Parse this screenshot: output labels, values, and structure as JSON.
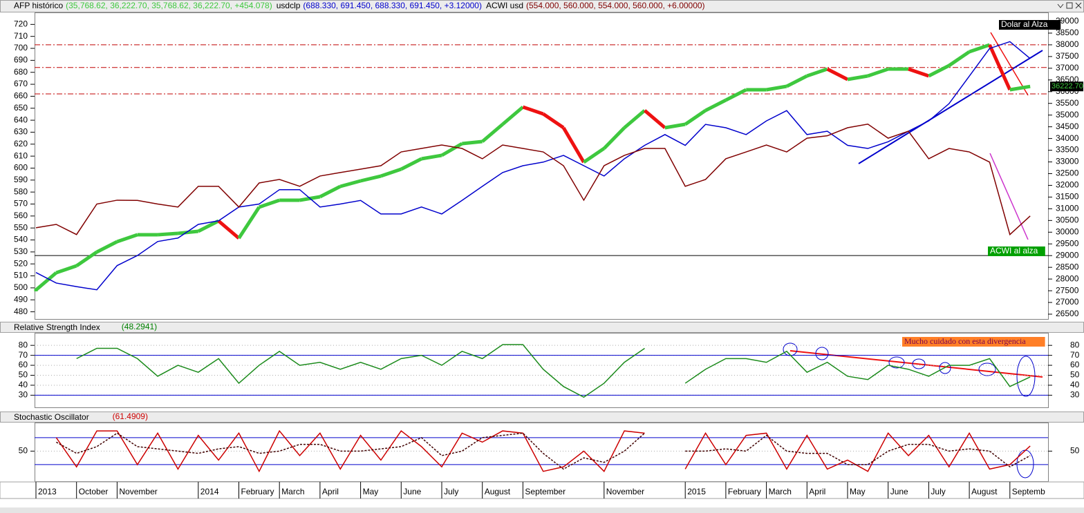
{
  "chart_data": [
    {
      "type": "line",
      "ylim": [
        474,
        730
      ],
      "yticks": [
        480,
        490,
        500,
        510,
        520,
        530,
        540,
        550,
        560,
        570,
        580,
        590,
        600,
        610,
        620,
        630,
        640,
        650,
        660,
        670,
        680,
        690,
        700,
        710,
        720
      ],
      "y2lim": [
        26294,
        39383
      ],
      "y2ticks": [
        26500,
        27000,
        27500,
        28000,
        28500,
        29000,
        29500,
        30000,
        30500,
        31000,
        31500,
        32000,
        32500,
        33000,
        33500,
        34000,
        34500,
        35000,
        35500,
        36000,
        36500,
        37000,
        37500,
        38000,
        38500,
        39000
      ],
      "categories": [
        "2013",
        null,
        "October",
        null,
        "November",
        null,
        null,
        null,
        "2014",
        null,
        "February",
        null,
        "March",
        null,
        "April",
        null,
        "May",
        null,
        "June",
        null,
        "July",
        null,
        "August",
        null,
        "September",
        null,
        null,
        null,
        "November",
        null,
        null,
        null,
        "2015",
        null,
        "February",
        null,
        "March",
        null,
        "April",
        null,
        "May",
        null,
        "June",
        null,
        "July",
        null,
        "August",
        null,
        "Septemb",
        null
      ],
      "series": [
        {
          "name": "AFP histórico",
          "summary": "(35,768.62, 36,222.70, 35,768.62, 36,222.70, +454.078)",
          "color": "#3ec83e",
          "down_color": "#ee1111",
          "axis": "y2",
          "last_value_label": "36222.70",
          "values": [
            27532,
            28269,
            28564,
            29154,
            29596,
            29891,
            29891,
            29950,
            30038,
            30480,
            29743,
            31070,
            31365,
            31365,
            31512,
            31954,
            32190,
            32396,
            32691,
            33133,
            33281,
            33782,
            33870,
            34607,
            35344,
            35050,
            34460,
            32986,
            33576,
            34460,
            35197,
            34460,
            34607,
            35197,
            35639,
            36081,
            36081,
            36229,
            36671,
            36966,
            36524,
            36671,
            36966,
            36966,
            36671,
            37113,
            37703,
            37998,
            36081,
            36222.7
          ]
        },
        {
          "name": "usdclp",
          "summary": "(688.330, 691.450, 688.330, 691.450, +3.12000)",
          "color": "#0000cc",
          "values": [
            512.8,
            504,
            501,
            498.4,
            518.6,
            527,
            538.7,
            541.6,
            553,
            556,
            567.5,
            570,
            582,
            582,
            567.5,
            570,
            573,
            561.7,
            561.7,
            567.5,
            561.7,
            573,
            584.8,
            596.3,
            602,
            605,
            610.6,
            602,
            593.4,
            607.8,
            619,
            628,
            619,
            636.5,
            633.7,
            628,
            639.4,
            648,
            628,
            630.8,
            619,
            616.4,
            622,
            630.8,
            639.4,
            653.8,
            676.8,
            699.9,
            705.6,
            691.45
          ]
        },
        {
          "name": "ACWI usd",
          "summary": "(554.000, 560.000, 554.000, 560.000, +6.00000)",
          "color": "#800000",
          "values": [
            550.2,
            553,
            544.5,
            570,
            573.2,
            573,
            570,
            567.5,
            584.8,
            584.8,
            567.5,
            587.6,
            590.5,
            584.8,
            593.4,
            596.3,
            599.1,
            602,
            613.5,
            616.4,
            619.3,
            616.4,
            607.8,
            619.3,
            616.4,
            613.5,
            602,
            573.2,
            602,
            610.6,
            616.4,
            616.4,
            584.8,
            590.5,
            607.8,
            613.5,
            619.3,
            613.5,
            625,
            627,
            633.7,
            636.7,
            625,
            630.8,
            607.8,
            616.4,
            613.5,
            605,
            544.5,
            560
          ]
        }
      ],
      "hlines": [
        {
          "value": 703,
          "color": "#c00000",
          "style": "dashdot"
        },
        {
          "value": 684,
          "color": "#c00000",
          "style": "dashdot"
        },
        {
          "value": 662,
          "color": "#c00000",
          "style": "dashdot"
        },
        {
          "value": 527,
          "color": "#000000",
          "style": "solid"
        }
      ],
      "annotations": [
        {
          "text": "Dolar al Alza",
          "background": "#000000",
          "color": "#ffffff"
        },
        {
          "text": "ACWI al alza",
          "background": "#00a000",
          "color": "#ffffff"
        }
      ]
    },
    {
      "type": "line",
      "title": "Relative Strength Index",
      "title_value": "(48.2941)",
      "title_value_color": "#008000",
      "ylim": [
        17.8,
        91.9
      ],
      "yticks": [
        30,
        40,
        50,
        60,
        70,
        80
      ],
      "grid": true,
      "hlines": [
        {
          "value": 70,
          "color": "#0000cc",
          "style": "solid"
        },
        {
          "value": 30,
          "color": "#0000cc",
          "style": "solid"
        }
      ],
      "series": [
        {
          "color": "#1a8a1a",
          "values": [
            null,
            null,
            66.7,
            77,
            77,
            66.7,
            49,
            60,
            53,
            66.7,
            42,
            60,
            74,
            60,
            63,
            56,
            63,
            56,
            66.7,
            70,
            60,
            74,
            66.7,
            80.7,
            80.7,
            56,
            38.7,
            28,
            42,
            63,
            77,
            null,
            42,
            56,
            66.7,
            66.7,
            63,
            74,
            53,
            63,
            49,
            45.7,
            60,
            56,
            49,
            60,
            60,
            66.7,
            38.7,
            48.2941
          ]
        }
      ],
      "annotations": [
        {
          "text": "Mucho cuidado con esta divergencia",
          "background": "#ff7f27",
          "color": "#7a0050"
        }
      ]
    },
    {
      "type": "line",
      "title": "Stochastic Oscillator",
      "title_value": "(61.4909)",
      "title_value_color": "#cc0000",
      "ylim": [
        -17,
        112
      ],
      "yticks": [
        50
      ],
      "grid": true,
      "hlines": [
        {
          "value": 80,
          "color": "#0000cc",
          "style": "solid"
        },
        {
          "value": 20,
          "color": "#0000cc",
          "style": "solid"
        }
      ],
      "series": [
        {
          "color": "#cc0000",
          "values": [
            null,
            80,
            15,
            95,
            95,
            20,
            90,
            10,
            85,
            30,
            90,
            5,
            95,
            40,
            90,
            10,
            85,
            30,
            95,
            60,
            15,
            90,
            70,
            95,
            90,
            5,
            15,
            50,
            5,
            95,
            90,
            null,
            10,
            90,
            20,
            85,
            90,
            10,
            85,
            10,
            30,
            5,
            90,
            40,
            85,
            15,
            90,
            10,
            20,
            61.4909
          ]
        },
        {
          "color": "#400000",
          "style": "dash",
          "values": [
            null,
            70,
            45,
            60,
            90,
            60,
            55,
            50,
            45,
            55,
            60,
            45,
            50,
            65,
            65,
            50,
            50,
            55,
            60,
            80,
            40,
            50,
            80,
            85,
            90,
            45,
            10,
            35,
            25,
            50,
            90,
            null,
            50,
            50,
            55,
            50,
            85,
            50,
            45,
            45,
            20,
            20,
            50,
            65,
            65,
            50,
            55,
            50,
            15,
            40
          ]
        }
      ]
    }
  ]
}
